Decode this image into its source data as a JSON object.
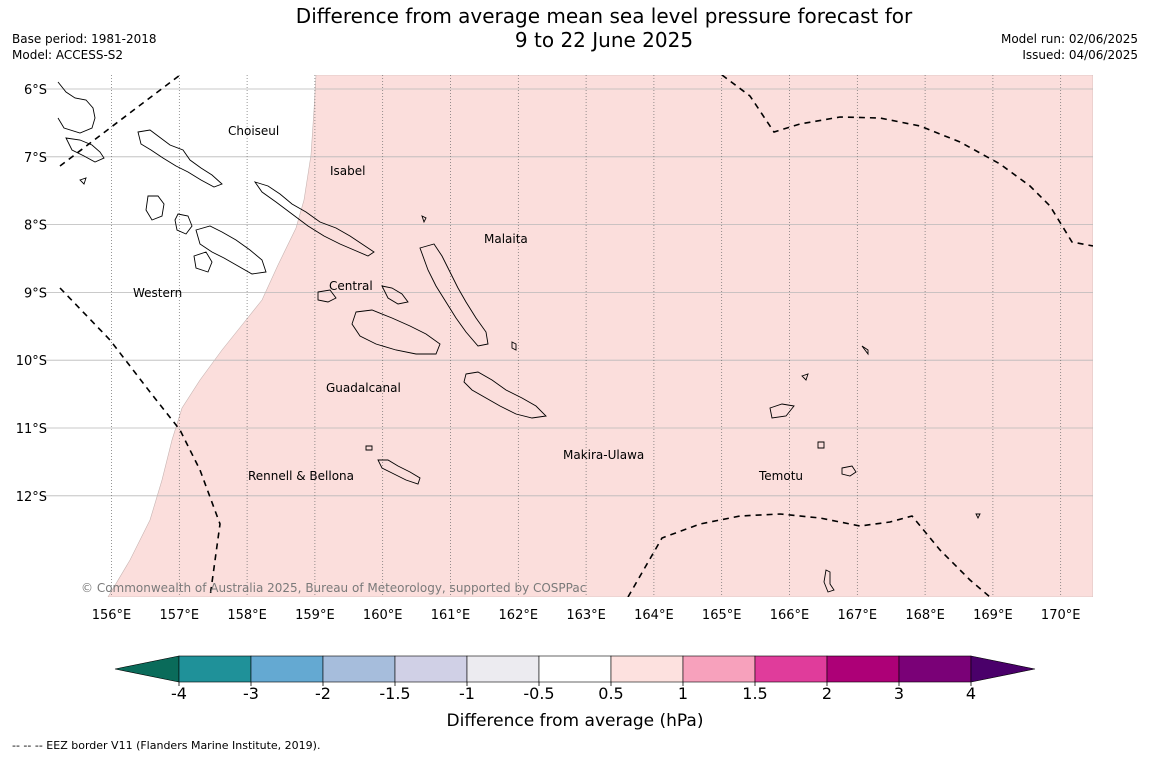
{
  "header": {
    "title_line1": "Difference from average mean sea level pressure forecast for",
    "title_line2": "9 to 22 June 2025",
    "base_period": "Base period: 1981-2018",
    "model": "Model: ACCESS-S2",
    "model_run": "Model run: 02/06/2025",
    "issued": "Issued: 04/06/2025"
  },
  "map": {
    "lat_labels": [
      "6°S",
      "7°S",
      "8°S",
      "9°S",
      "10°S",
      "11°S",
      "12°S"
    ],
    "lon_labels": [
      "156°E",
      "157°E",
      "158°E",
      "159°E",
      "160°E",
      "161°E",
      "162°E",
      "163°E",
      "164°E",
      "165°E",
      "166°E",
      "167°E",
      "168°E",
      "169°E",
      "170°E"
    ],
    "regions": {
      "choiseul": "Choiseul",
      "isabel": "Isabel",
      "malaita": "Malaita",
      "western": "Western",
      "central": "Central",
      "guadalcanal": "Guadalcanal",
      "makira_ulawa": "Makira-Ulawa",
      "temotu": "Temotu",
      "rennell_bellona": "Rennell & Bellona"
    },
    "copyright": "© Commonwealth of Australia 2025, Bureau of Meteorology, supported by COSPPac",
    "shaded_category": "0.5 to 1 hPa",
    "shade_color": "#fbdedc"
  },
  "colorbar": {
    "ticks": [
      "-4",
      "-3",
      "-2",
      "-1.5",
      "-1",
      "-0.5",
      "0.5",
      "1",
      "1.5",
      "2",
      "3",
      "4"
    ],
    "colors": [
      "#0a6b5a",
      "#1f9199",
      "#64a9d2",
      "#a6bddc",
      "#d0d0e6",
      "#ecebf0",
      "#ffffff",
      "#fde1df",
      "#f7a1bc",
      "#e03c9b",
      "#ad0077",
      "#7a0177",
      "#4a006a"
    ],
    "label": "Difference from average (hPa)"
  },
  "footnote": "-- -- -- EEZ border V11 (Flanders Marine Institute, 2019)."
}
